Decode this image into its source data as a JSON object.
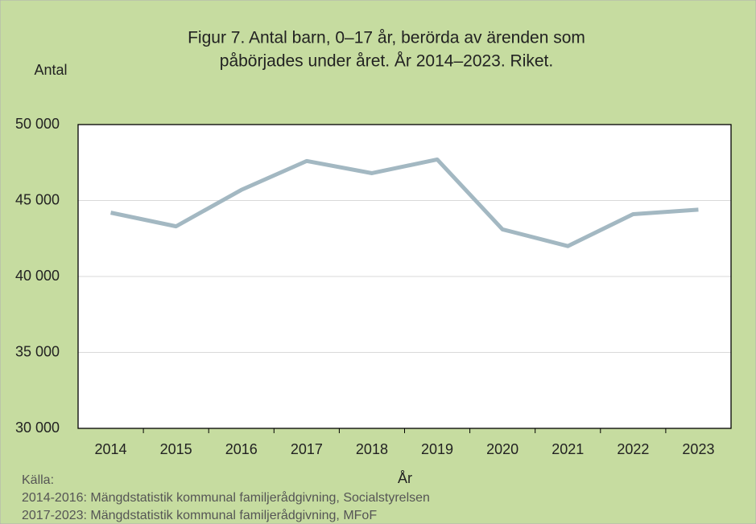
{
  "chart_data": {
    "type": "line",
    "title": [
      "Figur 7. Antal barn, 0–17 år, berörda av ärenden som",
      "påbörjades under året. År 2014–2023. Riket."
    ],
    "y_label": "Antal",
    "x_label": "År",
    "categories": [
      "2014",
      "2015",
      "2016",
      "2017",
      "2018",
      "2019",
      "2020",
      "2021",
      "2022",
      "2023"
    ],
    "series": [
      {
        "color": "#a3b8c2",
        "values": [
          44200,
          43300,
          45700,
          47600,
          46800,
          47700,
          43100,
          42000,
          44100,
          44400
        ]
      }
    ],
    "ylim": [
      30000,
      50000
    ],
    "yticks": [
      {
        "value": 30000,
        "label": "30 000"
      },
      {
        "value": 35000,
        "label": "35 000"
      },
      {
        "value": 40000,
        "label": "40 000"
      },
      {
        "value": 45000,
        "label": "45 000"
      },
      {
        "value": 50000,
        "label": "50 000"
      }
    ],
    "grid": true,
    "source": [
      "Källa:",
      "2014-2016: Mängdstatistik kommunal familjerådgivning, Socialstyrelsen",
      "2017-2023: Mängdstatistik kommunal familjerådgivning, MFoF"
    ]
  }
}
